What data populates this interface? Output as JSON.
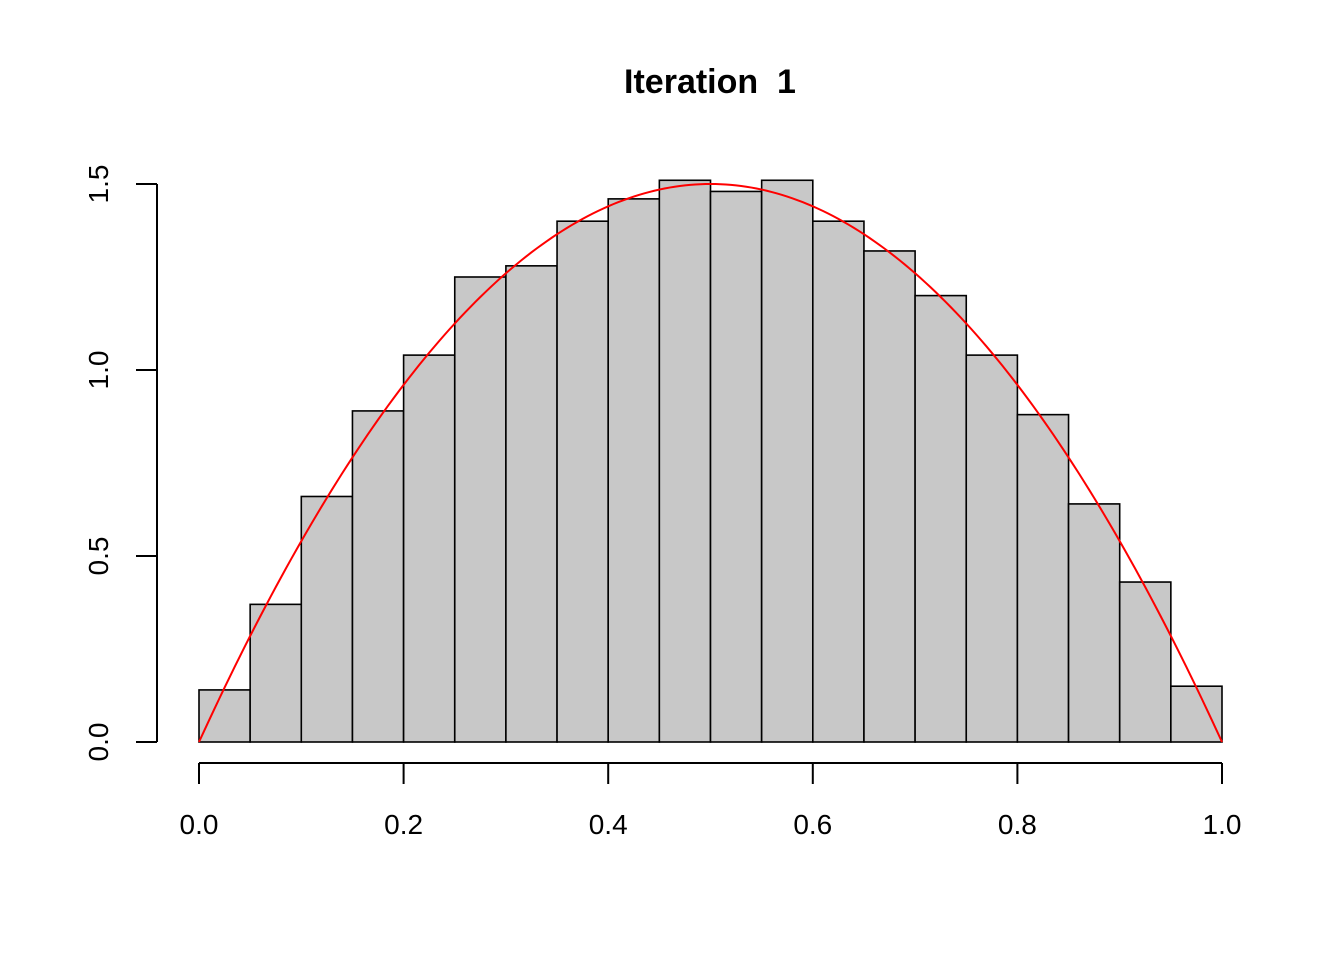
{
  "chart_data": {
    "type": "bar",
    "subtype": "histogram",
    "title": "Iteration  1",
    "xlabel": "",
    "ylabel": "",
    "xlim": [
      0,
      1
    ],
    "ylim": [
      0,
      1.5
    ],
    "x_ticks": [
      "0.0",
      "0.2",
      "0.4",
      "0.6",
      "0.8",
      "1.0"
    ],
    "y_ticks": [
      "0.0",
      "0.5",
      "1.0",
      "1.5"
    ],
    "bin_edges": [
      0,
      0.05,
      0.1,
      0.15,
      0.2,
      0.25,
      0.3,
      0.35,
      0.4,
      0.45,
      0.5,
      0.55,
      0.6,
      0.65,
      0.7,
      0.75,
      0.8,
      0.85,
      0.9,
      0.95,
      1.0
    ],
    "values": [
      0.14,
      0.37,
      0.66,
      0.89,
      1.04,
      1.25,
      1.28,
      1.4,
      1.46,
      1.51,
      1.48,
      1.51,
      1.4,
      1.32,
      1.2,
      1.04,
      0.88,
      0.64,
      0.43,
      0.15
    ],
    "bar_color": "#c8c8c8",
    "overlay_curve": {
      "function": "6*x*(1-x)",
      "color": "#ff0000"
    },
    "grid": false
  }
}
